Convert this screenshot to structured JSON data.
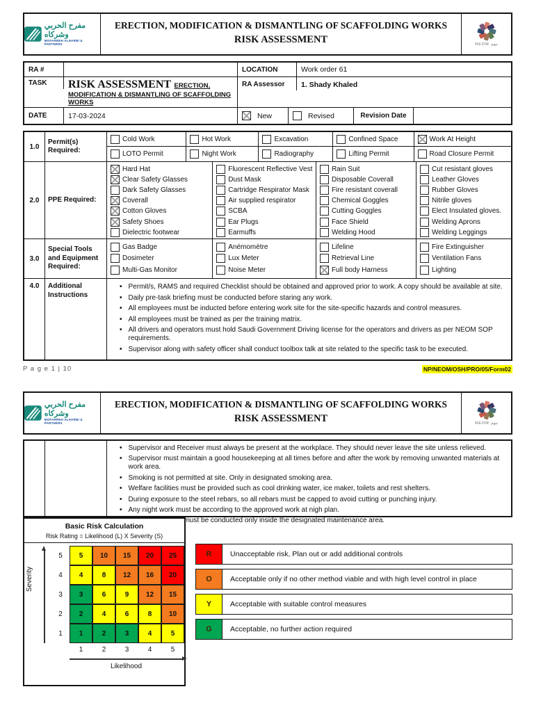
{
  "brand": {
    "company_arabic": "مفرح الحربي وشركاه",
    "company_english": "MOFARREH ALHARBI & PARTNERS",
    "neom_label": "NEOM نيوم",
    "teal": "#17897a",
    "blue": "#1d4fa1"
  },
  "header": {
    "title_line1": "ERECTION, MODIFICATION & DISMANTLING OF SCAFFOLDING WORKS",
    "title_line2": "RISK ASSESSMENT"
  },
  "page1": {
    "info": {
      "ra_label": "RA #",
      "ra_value": "",
      "location_label": "LOCATION",
      "location_value": "Work order 61",
      "task_label": "TASK",
      "task_main": "RISK ASSESSMENT",
      "task_sub1": "ERECTION,",
      "task_sub2": "MODIFICATION & DISMANTLING OF SCAFFOLDING",
      "task_sub3": "WORKS",
      "assessor_label": "RA Assessor",
      "assessor_value": "1.   Shady Khaled",
      "date_label": "DATE",
      "date_value": "17-03-2024",
      "new_label": "New",
      "new_checked": true,
      "revised_label": "Revised",
      "revised_checked": false,
      "revision_date_label": "Revision Date",
      "revision_date_value": ""
    },
    "sections": [
      {
        "no": "1.0",
        "label": "Permit(s) Required:",
        "rows": [
          [
            {
              "label": "Cold Work",
              "checked": false
            },
            {
              "label": "Hot Work",
              "checked": false
            },
            {
              "label": "Excavation",
              "checked": false
            },
            {
              "label": "Confined Space",
              "checked": false
            },
            {
              "label": "Work At Height",
              "checked": true
            }
          ],
          [
            {
              "label": "LOTO Permit",
              "checked": false
            },
            {
              "label": "Night Work",
              "checked": false
            },
            {
              "label": "Radiography",
              "checked": false
            },
            {
              "label": "Lifting Permit",
              "checked": false
            },
            {
              "label": "Road Closure Permit",
              "checked": false
            }
          ]
        ]
      },
      {
        "no": "2.0",
        "label": "PPE Required:",
        "columns": [
          [
            {
              "label": "Hard Hat",
              "checked": true
            },
            {
              "label": "Clear Safety Glasses",
              "checked": true
            },
            {
              "label": "Dark Safety Glasses",
              "checked": false
            },
            {
              "label": "Coverall",
              "checked": true
            },
            {
              "label": "Cotton Gloves",
              "checked": true
            },
            {
              "label": "Safety Shoes",
              "checked": true
            },
            {
              "label": "Dielectric footwear",
              "checked": false
            }
          ],
          [
            {
              "label": "Fluorescent Reflective Vest",
              "checked": false
            },
            {
              "label": "Dust Mask",
              "checked": false
            },
            {
              "label": "Cartridge Respirator Mask",
              "checked": false
            },
            {
              "label": "Air supplied respirator",
              "checked": false
            },
            {
              "label": "SCBA",
              "checked": false
            },
            {
              "label": "Ear Plugs",
              "checked": false
            },
            {
              "label": "Earmuffs",
              "checked": false
            }
          ],
          [
            {
              "label": "Rain Suit",
              "checked": false
            },
            {
              "label": "Disposable Coverall",
              "checked": false
            },
            {
              "label": "Fire resistant coverall",
              "checked": false
            },
            {
              "label": "Chemical Goggles",
              "checked": false
            },
            {
              "label": "Cutting Goggles",
              "checked": false
            },
            {
              "label": "Face Shield",
              "checked": false
            },
            {
              "label": "Welding Hood",
              "checked": false
            }
          ],
          [
            {
              "label": "Cut resistant gloves",
              "checked": false
            },
            {
              "label": "Leather Gloves",
              "checked": false
            },
            {
              "label": "Rubber Gloves",
              "checked": false
            },
            {
              "label": "Nitrile gloves",
              "checked": false
            },
            {
              "label": "Elect Insulated gloves.",
              "checked": false
            },
            {
              "label": "Welding Aprons",
              "checked": false
            },
            {
              "label": "Welding Leggings",
              "checked": false
            }
          ]
        ]
      },
      {
        "no": "3.0",
        "label": "Special Tools and Equipment Required:",
        "columns": [
          [
            {
              "label": "Gas Badge",
              "checked": false
            },
            {
              "label": "Dosimeter",
              "checked": false
            },
            {
              "label": "Multi-Gas Monitor",
              "checked": false
            }
          ],
          [
            {
              "label": "Anémomètre",
              "checked": false
            },
            {
              "label": "Lux Meter",
              "checked": false
            },
            {
              "label": "Noise Meter",
              "checked": false
            }
          ],
          [
            {
              "label": "Lifeline",
              "checked": false
            },
            {
              "label": "Retrieval Line",
              "checked": false
            },
            {
              "label": "Full body Harness",
              "checked": true
            }
          ],
          [
            {
              "label": "Fire Extinguisher",
              "checked": false
            },
            {
              "label": "Ventilation Fans",
              "checked": false
            },
            {
              "label": "Lighting",
              "checked": false
            }
          ]
        ]
      },
      {
        "no": "4.0",
        "label": "Additional Instructions",
        "bullets": [
          "Permit/s, RAMS and required Checklist should be obtained and approved prior to work. A copy should be available at site.",
          "Daily pre-task briefing must be conducted before staring any work.",
          "All employees must be inducted before entering work site for the site-specific hazards and control measures.",
          "All employees must be trained as per the training matrix.",
          "All drivers and operators must hold Saudi Government Driving license for the operators and drivers as per NEOM SOP requirements.",
          "Supervisor along with safety officer shall conduct toolbox talk at site related to the specific task to be executed."
        ]
      }
    ],
    "footer": {
      "page_label": "P a g e 1 | 10",
      "form_code": "NP/NEOM/OSH/PRO/05/Form02",
      "highlight": "#ffff00"
    }
  },
  "page2": {
    "continuation_bullets": [
      "Supervisor and Receiver must always be present at the workplace. They should never leave the site unless relieved.",
      "Supervisor must maintain a good housekeeping at all times before and after the work by removing unwanted materials at work area.",
      "Smoking is not permitted at site.  Only in designated smoking area.",
      "Welfare facilities must be provided such as cool drinking water, ice maker, toilets and rest shelters.",
      "During exposure to the steel rebars, so all rebars must be capped to avoid cutting or punching injury.",
      "Any night work must be according to the approved work at nigh plan.",
      "The maintenance must be conducted only inside the designated maintenance area."
    ],
    "risk_calc": {
      "type": "heatmap",
      "title": "Basic Risk Calculation",
      "subtitle": "Risk Rating = Likelihood (L) X Severity (S)",
      "y_axis": "Severity",
      "x_axis": "Likelihood",
      "severity_ticks": [
        5,
        4,
        3,
        2,
        1
      ],
      "likelihood_ticks": [
        1,
        2,
        3,
        4,
        5
      ],
      "colors": {
        "g": "#00A651",
        "y": "#FFFF00",
        "o": "#F47B20",
        "r": "#FE0000"
      },
      "rows": [
        [
          {
            "v": 5,
            "c": "y"
          },
          {
            "v": 10,
            "c": "o"
          },
          {
            "v": 15,
            "c": "o"
          },
          {
            "v": 20,
            "c": "r"
          },
          {
            "v": 25,
            "c": "r"
          }
        ],
        [
          {
            "v": 4,
            "c": "y"
          },
          {
            "v": 8,
            "c": "y"
          },
          {
            "v": 12,
            "c": "o"
          },
          {
            "v": 16,
            "c": "o"
          },
          {
            "v": 20,
            "c": "r"
          }
        ],
        [
          {
            "v": 3,
            "c": "g"
          },
          {
            "v": 6,
            "c": "y"
          },
          {
            "v": 9,
            "c": "y"
          },
          {
            "v": 12,
            "c": "o"
          },
          {
            "v": 15,
            "c": "o"
          }
        ],
        [
          {
            "v": 2,
            "c": "g"
          },
          {
            "v": 4,
            "c": "y"
          },
          {
            "v": 6,
            "c": "y"
          },
          {
            "v": 8,
            "c": "y"
          },
          {
            "v": 10,
            "c": "o"
          }
        ],
        [
          {
            "v": 1,
            "c": "g"
          },
          {
            "v": 2,
            "c": "g"
          },
          {
            "v": 3,
            "c": "g"
          },
          {
            "v": 4,
            "c": "y"
          },
          {
            "v": 5,
            "c": "y"
          }
        ]
      ]
    },
    "legend": [
      {
        "code": "R",
        "color": "#FE0000",
        "text": "Unacceptable risk, Plan out or add additional controls"
      },
      {
        "code": "O",
        "color": "#F47B20",
        "text": "Acceptable only if no other method viable and with high level control in place"
      },
      {
        "code": "Y",
        "color": "#FFFF00",
        "text": "Acceptable with suitable control measures"
      },
      {
        "code": "G",
        "color": "#00A651",
        "text": "Acceptable, no further action required"
      }
    ]
  }
}
